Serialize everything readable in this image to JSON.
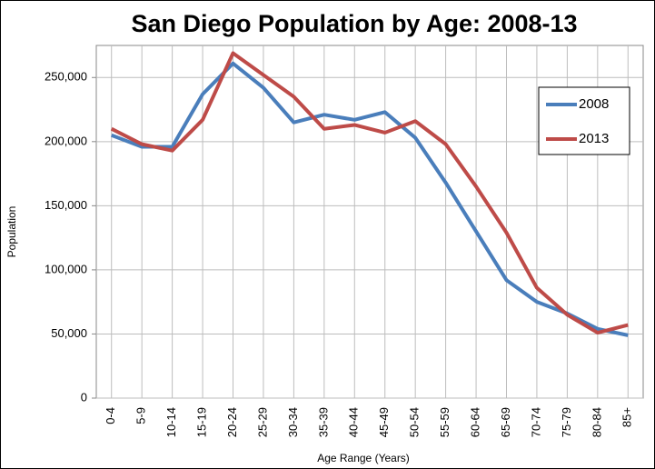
{
  "chart_data": {
    "type": "line",
    "title": "San Diego Population by Age: 2008-13",
    "x_label": "Age Range (Years)",
    "y_label": "Population",
    "categories": [
      "0-4",
      "5-9",
      "10-14",
      "15-19",
      "20-24",
      "25-29",
      "30-34",
      "35-39",
      "40-44",
      "45-49",
      "50-54",
      "55-59",
      "60-64",
      "65-69",
      "70-74",
      "75-79",
      "80-84",
      "85+"
    ],
    "series": [
      {
        "name": "2008",
        "color": "#4a7ebb",
        "values": [
          205000,
          196000,
          196000,
          237000,
          261000,
          242000,
          215000,
          221000,
          217000,
          223000,
          203000,
          168000,
          130000,
          92000,
          75000,
          66000,
          54000,
          49000
        ]
      },
      {
        "name": "2013",
        "color": "#be4b48",
        "values": [
          210000,
          198000,
          193000,
          217000,
          269000,
          252000,
          235000,
          210000,
          213000,
          207000,
          216000,
          198000,
          165000,
          129000,
          86000,
          65000,
          51000,
          57000
        ]
      }
    ],
    "ylim": [
      0,
      275000
    ],
    "yticks": [
      0,
      {
        "value": 50000,
        "label": "50,000"
      },
      {
        "value": 100000,
        "label": "100,000"
      },
      {
        "value": 150000,
        "label": "150,000"
      },
      {
        "value": 200000,
        "label": "200,000"
      },
      {
        "value": 250000,
        "label": "250,000"
      }
    ],
    "grid": true,
    "legend": "right"
  }
}
